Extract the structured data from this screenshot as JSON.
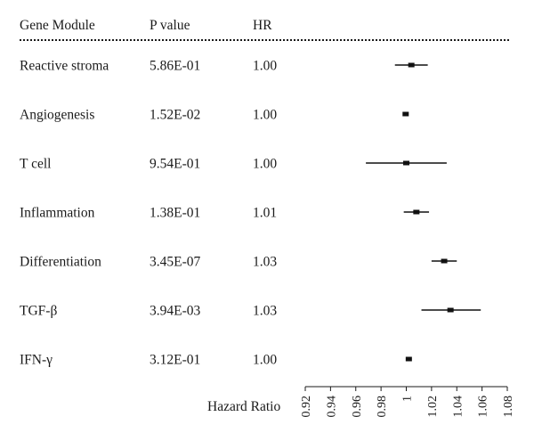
{
  "table": {
    "headers": [
      "Gene Module",
      "P value",
      "HR"
    ]
  },
  "chart_data": {
    "type": "forest",
    "xlabel": "Hazard Ratio",
    "xlim": [
      0.92,
      1.08
    ],
    "xticks": [
      0.92,
      0.94,
      0.96,
      0.98,
      1,
      1.02,
      1.04,
      1.06,
      1.08
    ],
    "xtick_labels": [
      "0.92",
      "0.94",
      "0.96",
      "0.98",
      "1",
      "1.02",
      "1.04",
      "1.06",
      "1.08"
    ],
    "rows": [
      {
        "module": "Reactive stroma",
        "p_value": "5.86E-01",
        "hr_label": "1.00",
        "hr": 1.004,
        "ci_low": 0.991,
        "ci_high": 1.017
      },
      {
        "module": "Angiogenesis",
        "p_value": "1.52E-02",
        "hr_label": "1.00",
        "hr": 0.9995,
        "ci_low": 0.9985,
        "ci_high": 1.0005
      },
      {
        "module": "T cell",
        "p_value": "9.54E-01",
        "hr_label": "1.00",
        "hr": 1.0,
        "ci_low": 0.968,
        "ci_high": 1.032
      },
      {
        "module": "Inflammation",
        "p_value": "1.38E-01",
        "hr_label": "1.01",
        "hr": 1.008,
        "ci_low": 0.998,
        "ci_high": 1.018
      },
      {
        "module": "Differentiation",
        "p_value": "3.45E-07",
        "hr_label": "1.03",
        "hr": 1.03,
        "ci_low": 1.02,
        "ci_high": 1.04
      },
      {
        "module": "TGF-β",
        "p_value": "3.94E-03",
        "hr_label": "1.03",
        "hr": 1.035,
        "ci_low": 1.012,
        "ci_high": 1.059
      },
      {
        "module": "IFN-γ",
        "p_value": "3.12E-01",
        "hr_label": "1.00",
        "hr": 1.002,
        "ci_low": 1.001,
        "ci_high": 1.003
      }
    ]
  }
}
